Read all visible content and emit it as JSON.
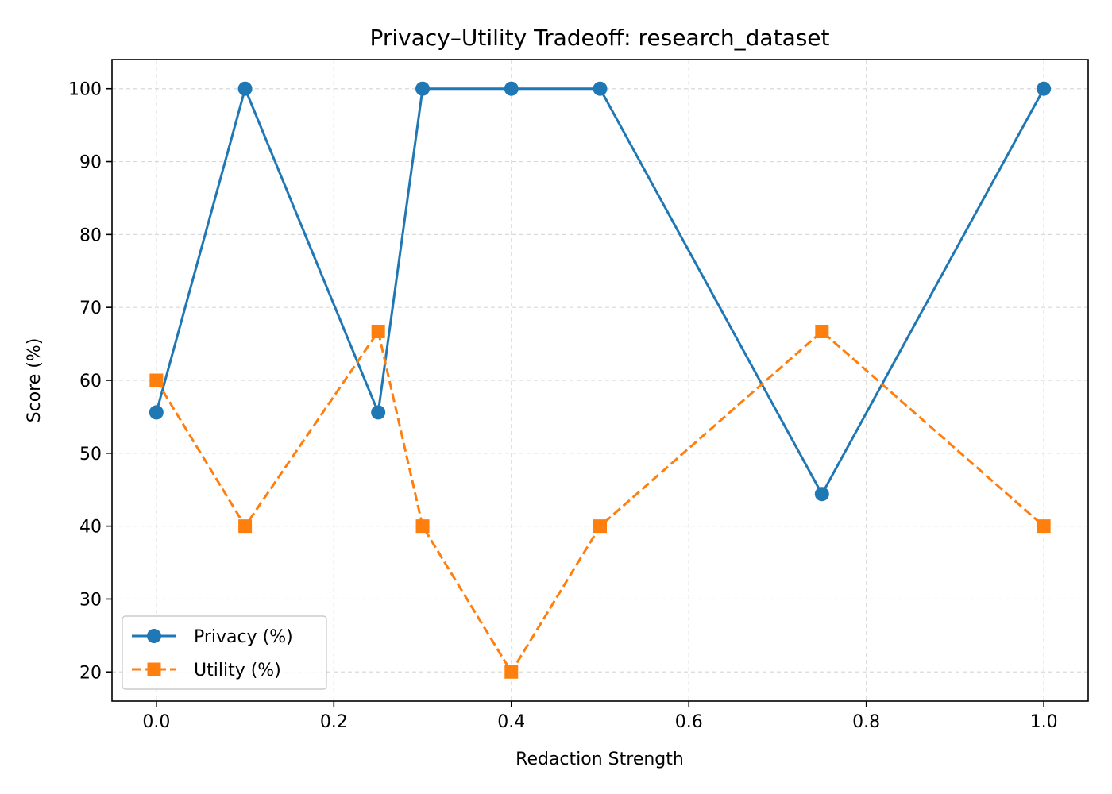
{
  "chart_data": {
    "type": "line",
    "title": "Privacy–Utility Tradeoff: research_dataset",
    "xlabel": "Redaction Strength",
    "ylabel": "Score (%)",
    "xlim": [
      -0.05,
      1.05
    ],
    "ylim": [
      16,
      104
    ],
    "xticks": [
      0.0,
      0.2,
      0.4,
      0.6,
      0.8,
      1.0
    ],
    "xtick_labels": [
      "0.0",
      "0.2",
      "0.4",
      "0.6",
      "0.8",
      "1.0"
    ],
    "yticks": [
      20,
      30,
      40,
      50,
      60,
      70,
      80,
      90,
      100
    ],
    "ytick_labels": [
      "20",
      "30",
      "40",
      "50",
      "60",
      "70",
      "80",
      "90",
      "100"
    ],
    "grid": true,
    "legend_position": "bottom-left",
    "x": [
      0.0,
      0.1,
      0.25,
      0.3,
      0.4,
      0.5,
      0.75,
      1.0
    ],
    "series": [
      {
        "name": "Privacy (%)",
        "values": [
          55.6,
          100,
          55.6,
          100,
          100,
          100,
          44.4,
          100
        ],
        "color": "#1f77b4",
        "line_style": "solid",
        "marker": "circle"
      },
      {
        "name": "Utility (%)",
        "values": [
          60,
          40,
          66.7,
          40,
          20,
          40,
          66.7,
          40
        ],
        "color": "#ff7f0e",
        "line_style": "dashed",
        "marker": "square"
      }
    ]
  }
}
